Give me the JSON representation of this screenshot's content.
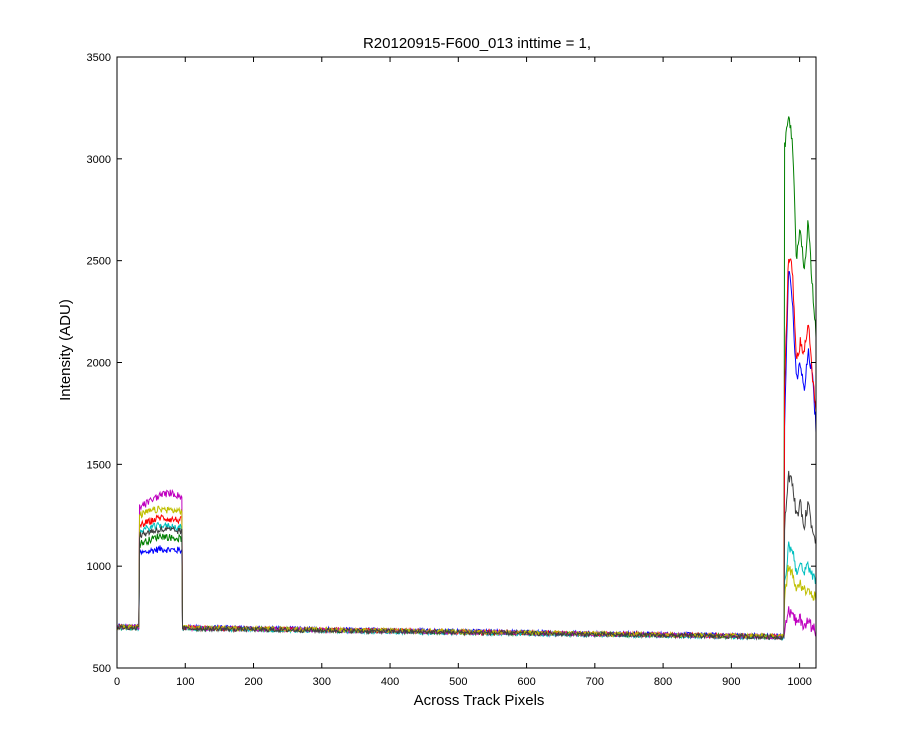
{
  "chart_data": {
    "type": "line",
    "title": "R20120915-F600_013 inttime = 1,",
    "xlabel": "Across Track Pixels",
    "ylabel": "Intensity (ADU)",
    "xlim": [
      0,
      1024
    ],
    "ylim": [
      500,
      3500
    ],
    "xticks": [
      0,
      100,
      200,
      300,
      400,
      500,
      600,
      700,
      800,
      900,
      1000
    ],
    "yticks": [
      500,
      1000,
      1500,
      2000,
      2500,
      3000,
      3500
    ],
    "grid": false,
    "legend": "none",
    "description_note": "",
    "series": [
      {
        "color": "#0000ff",
        "baseline": [
          705,
          655
        ],
        "left_plateau": [
          1060,
          1075,
          1085,
          1080,
          1078
        ],
        "right": [
          1700,
          2480,
          2300,
          1900,
          2000,
          1850,
          2050,
          1950,
          1680
        ]
      },
      {
        "color": "#007f00",
        "baseline": [
          700,
          650
        ],
        "left_plateau": [
          1110,
          1130,
          1150,
          1140,
          1135
        ],
        "right": [
          3050,
          3200,
          3100,
          2500,
          2650,
          2450,
          2700,
          2400,
          2150
        ]
      },
      {
        "color": "#ff0000",
        "baseline": [
          702,
          652
        ],
        "left_plateau": [
          1200,
          1220,
          1240,
          1230,
          1225
        ],
        "right": [
          1900,
          2520,
          2450,
          2000,
          2100,
          2050,
          2200,
          1950,
          1750
        ]
      },
      {
        "color": "#00bfbf",
        "baseline": [
          698,
          648
        ],
        "left_plateau": [
          1170,
          1190,
          1200,
          1195,
          1190
        ],
        "right": [
          900,
          1100,
          1080,
          980,
          1000,
          960,
          1010,
          950,
          930
        ]
      },
      {
        "color": "#bf00bf",
        "baseline": [
          701,
          651
        ],
        "left_plateau": [
          1290,
          1320,
          1350,
          1360,
          1340
        ],
        "right": [
          700,
          780,
          760,
          720,
          740,
          710,
          730,
          700,
          690
        ]
      },
      {
        "color": "#bfbf00",
        "baseline": [
          703,
          653
        ],
        "left_plateau": [
          1250,
          1270,
          1280,
          1275,
          1270
        ],
        "right": [
          850,
          1000,
          950,
          900,
          920,
          880,
          900,
          860,
          840
        ]
      },
      {
        "color": "#3f3f3f",
        "baseline": [
          699,
          649
        ],
        "left_plateau": [
          1150,
          1170,
          1180,
          1175,
          1170
        ],
        "right": [
          1200,
          1450,
          1400,
          1250,
          1300,
          1200,
          1320,
          1180,
          1130
        ]
      }
    ]
  }
}
